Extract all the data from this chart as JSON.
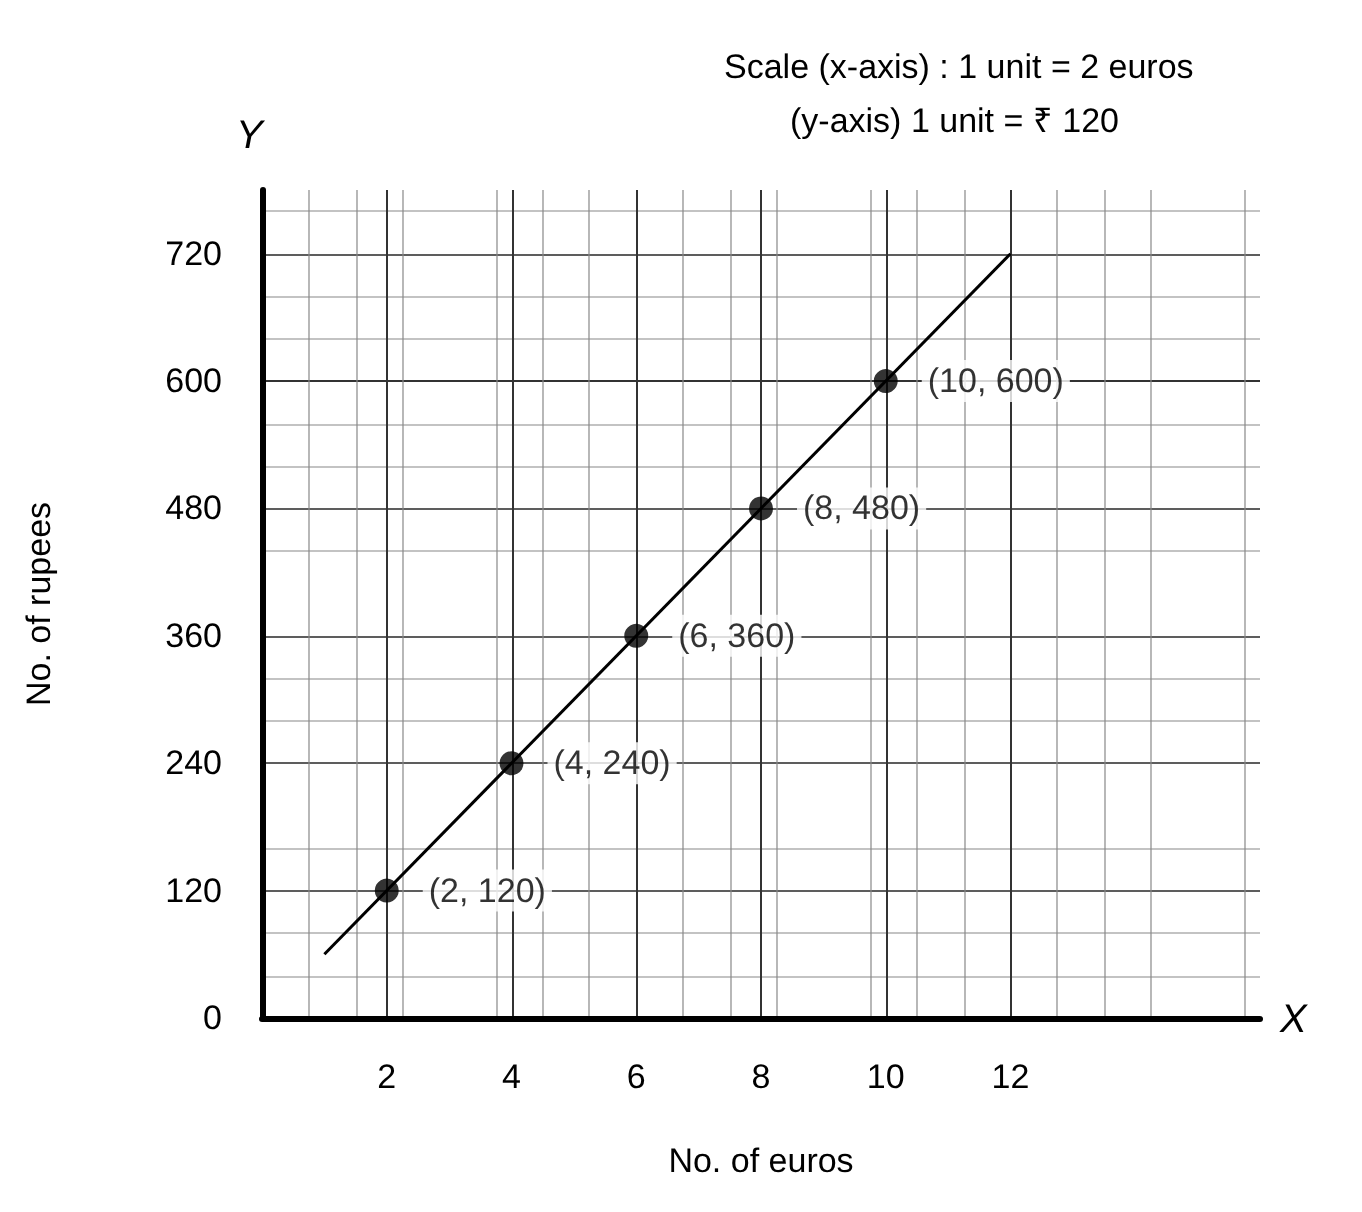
{
  "chart_data": {
    "type": "scatter",
    "xlabel": "No. of euros",
    "ylabel": "No. of rupees",
    "annotations": [
      "Scale (x-axis) : 1 unit = 2 euros",
      "(y-axis) 1 unit = ₹ 120",
      "X",
      "Y"
    ],
    "xlim": [
      0,
      16
    ],
    "ylim": [
      0,
      780
    ],
    "xticks": [
      2,
      4,
      6,
      8,
      10,
      12
    ],
    "yticks": [
      0,
      120,
      240,
      360,
      480,
      600,
      720
    ],
    "grid": true,
    "x": [
      2,
      4,
      6,
      8,
      10
    ],
    "series": [
      {
        "marker": "circle",
        "color": "#000000",
        "values": [
          120,
          240,
          360,
          480,
          600
        ],
        "value_labels": [
          "(2, 120)",
          "(4, 240)",
          "(6, 360)",
          "(8, 480)",
          "(10, 600)"
        ]
      },
      {
        "type": "line",
        "marker": "none",
        "color": "#000000",
        "x": [
          1,
          12
        ],
        "values": [
          60,
          720
        ]
      }
    ]
  }
}
